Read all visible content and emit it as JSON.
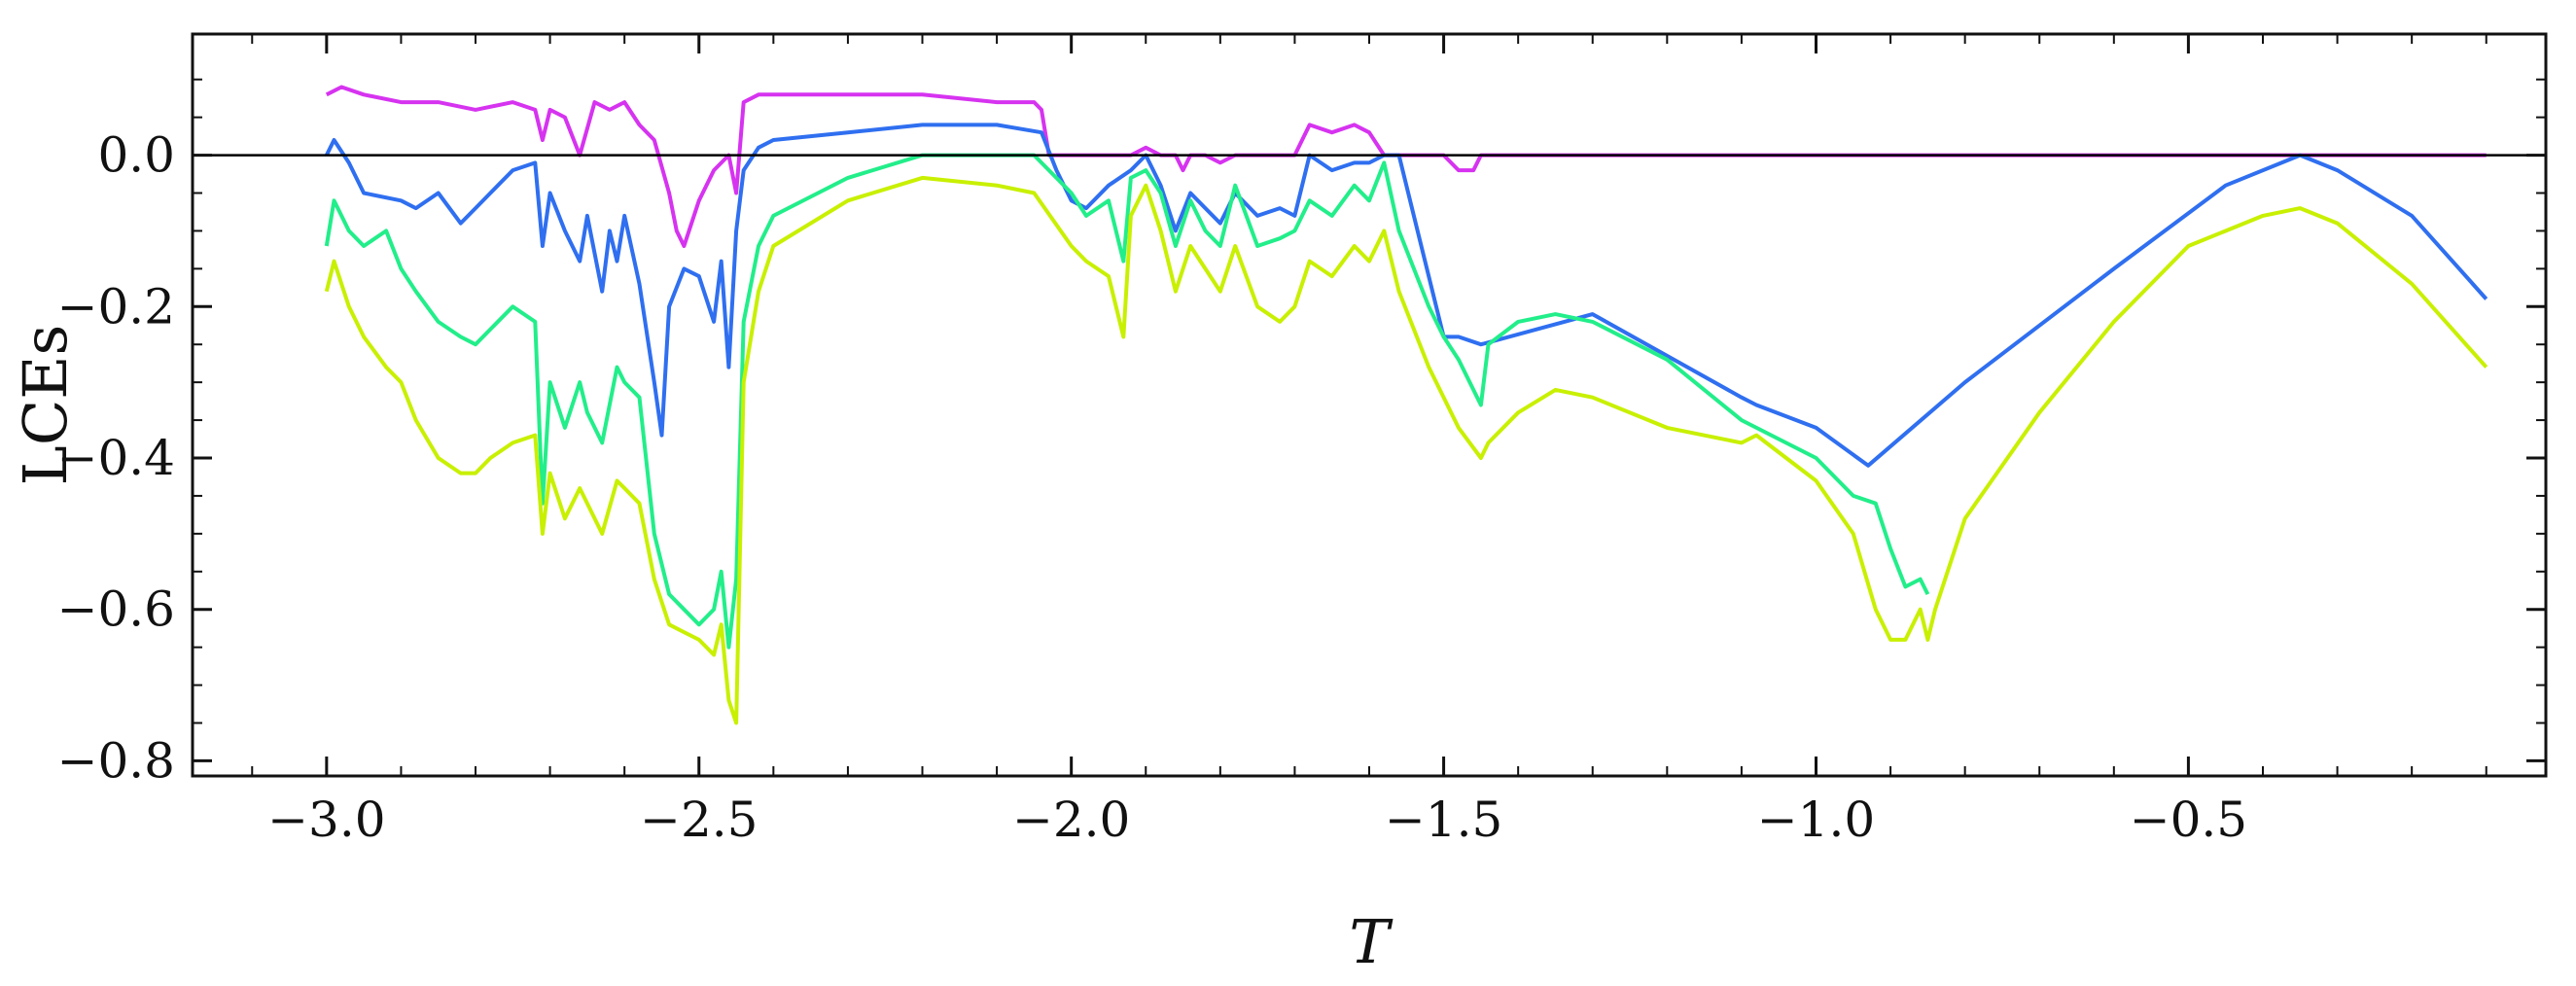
{
  "chart_data": {
    "type": "line",
    "xlabel": "T",
    "ylabel": "LCEs",
    "xlim": [
      -3.18,
      -0.02
    ],
    "ylim": [
      -0.82,
      0.16
    ],
    "xticks": [
      -3.0,
      -2.5,
      -2.0,
      -1.5,
      -1.0,
      -0.5
    ],
    "xtick_labels": [
      "−3.0",
      "−2.5",
      "−2.0",
      "−1.5",
      "−1.0",
      "−0.5"
    ],
    "yticks": [
      -0.8,
      -0.6,
      -0.4,
      -0.2,
      0.0
    ],
    "ytick_labels": [
      "−0.8",
      "−0.6",
      "−0.4",
      "−0.2",
      "0.0"
    ],
    "zero_line": 0.0,
    "grid": false,
    "legend": "none",
    "colors": {
      "magenta": "#d633f0",
      "blue": "#2f6ff0",
      "green": "#22ee8a",
      "yellow": "#c8f000",
      "zero_line": "#000000"
    },
    "series": [
      {
        "color": "magenta",
        "x": [
          -3.0,
          -2.98,
          -2.95,
          -2.9,
          -2.85,
          -2.8,
          -2.75,
          -2.72,
          -2.71,
          -2.7,
          -2.68,
          -2.66,
          -2.64,
          -2.62,
          -2.6,
          -2.58,
          -2.56,
          -2.54,
          -2.53,
          -2.52,
          -2.5,
          -2.48,
          -2.46,
          -2.45,
          -2.44,
          -2.42,
          -2.4,
          -2.3,
          -2.2,
          -2.1,
          -2.05,
          -2.04,
          -2.03,
          -2.0,
          -1.98,
          -1.95,
          -1.92,
          -1.9,
          -1.88,
          -1.86,
          -1.85,
          -1.84,
          -1.82,
          -1.8,
          -1.78,
          -1.75,
          -1.7,
          -1.68,
          -1.65,
          -1.62,
          -1.6,
          -1.58,
          -1.55,
          -1.5,
          -1.48,
          -1.46,
          -1.45,
          -1.44,
          -1.0,
          -0.5,
          -0.1
        ],
        "y": [
          0.08,
          0.09,
          0.08,
          0.07,
          0.07,
          0.06,
          0.07,
          0.06,
          0.02,
          0.06,
          0.05,
          0.0,
          0.07,
          0.06,
          0.07,
          0.04,
          0.02,
          -0.05,
          -0.1,
          -0.12,
          -0.06,
          -0.02,
          0.0,
          -0.05,
          0.07,
          0.08,
          0.08,
          0.08,
          0.08,
          0.07,
          0.07,
          0.06,
          0.0,
          0.0,
          0.0,
          0.0,
          0.0,
          0.01,
          0.0,
          0.0,
          -0.02,
          0.0,
          0.0,
          -0.01,
          0.0,
          0.0,
          0.0,
          0.04,
          0.03,
          0.04,
          0.03,
          0.0,
          0.0,
          0.0,
          -0.02,
          -0.02,
          0.0,
          0.0,
          0.0,
          0.0,
          0.0
        ]
      },
      {
        "color": "blue",
        "x": [
          -3.0,
          -2.99,
          -2.97,
          -2.95,
          -2.9,
          -2.88,
          -2.85,
          -2.82,
          -2.8,
          -2.78,
          -2.75,
          -2.72,
          -2.71,
          -2.7,
          -2.68,
          -2.66,
          -2.65,
          -2.63,
          -2.62,
          -2.61,
          -2.6,
          -2.58,
          -2.56,
          -2.55,
          -2.54,
          -2.52,
          -2.5,
          -2.48,
          -2.47,
          -2.46,
          -2.45,
          -2.44,
          -2.42,
          -2.4,
          -2.3,
          -2.2,
          -2.1,
          -2.04,
          -2.02,
          -2.0,
          -1.98,
          -1.95,
          -1.92,
          -1.9,
          -1.88,
          -1.86,
          -1.84,
          -1.82,
          -1.8,
          -1.78,
          -1.75,
          -1.72,
          -1.7,
          -1.68,
          -1.65,
          -1.62,
          -1.6,
          -1.58,
          -1.56,
          -1.54,
          -1.5,
          -1.48,
          -1.45,
          -1.3,
          -1.1,
          -1.08,
          -1.0,
          -0.93,
          -0.8,
          -0.6,
          -0.45,
          -0.35,
          -0.3,
          -0.2,
          -0.1
        ],
        "y": [
          0.0,
          0.02,
          -0.01,
          -0.05,
          -0.06,
          -0.07,
          -0.05,
          -0.09,
          -0.07,
          -0.05,
          -0.02,
          -0.01,
          -0.12,
          -0.05,
          -0.1,
          -0.14,
          -0.08,
          -0.18,
          -0.1,
          -0.14,
          -0.08,
          -0.17,
          -0.3,
          -0.37,
          -0.2,
          -0.15,
          -0.16,
          -0.22,
          -0.14,
          -0.28,
          -0.1,
          -0.02,
          0.01,
          0.02,
          0.03,
          0.04,
          0.04,
          0.03,
          -0.02,
          -0.06,
          -0.07,
          -0.04,
          -0.02,
          0.0,
          -0.04,
          -0.1,
          -0.05,
          -0.07,
          -0.09,
          -0.05,
          -0.08,
          -0.07,
          -0.08,
          0.0,
          -0.02,
          -0.01,
          -0.01,
          0.0,
          0.0,
          -0.08,
          -0.24,
          -0.24,
          -0.25,
          -0.21,
          -0.32,
          -0.33,
          -0.36,
          -0.41,
          -0.3,
          -0.15,
          -0.04,
          0.0,
          -0.02,
          -0.08,
          -0.19
        ]
      },
      {
        "color": "green",
        "x": [
          -3.0,
          -2.99,
          -2.97,
          -2.95,
          -2.92,
          -2.9,
          -2.88,
          -2.85,
          -2.82,
          -2.8,
          -2.78,
          -2.75,
          -2.72,
          -2.71,
          -2.7,
          -2.68,
          -2.66,
          -2.65,
          -2.63,
          -2.61,
          -2.6,
          -2.58,
          -2.56,
          -2.54,
          -2.52,
          -2.5,
          -2.48,
          -2.47,
          -2.46,
          -2.45,
          -2.44,
          -2.42,
          -2.4,
          -2.3,
          -2.2,
          -2.1,
          -2.05,
          -2.0,
          -1.98,
          -1.95,
          -1.93,
          -1.92,
          -1.9,
          -1.88,
          -1.86,
          -1.84,
          -1.82,
          -1.8,
          -1.78,
          -1.75,
          -1.72,
          -1.7,
          -1.68,
          -1.65,
          -1.62,
          -1.6,
          -1.58,
          -1.56,
          -1.52,
          -1.5,
          -1.48,
          -1.45,
          -1.44,
          -1.4,
          -1.35,
          -1.3,
          -1.2,
          -1.1,
          -1.08,
          -1.0,
          -0.95,
          -0.92,
          -0.9,
          -0.88,
          -0.86,
          -0.85
        ],
        "y": [
          -0.12,
          -0.06,
          -0.1,
          -0.12,
          -0.1,
          -0.15,
          -0.18,
          -0.22,
          -0.24,
          -0.25,
          -0.23,
          -0.2,
          -0.22,
          -0.46,
          -0.3,
          -0.36,
          -0.3,
          -0.34,
          -0.38,
          -0.28,
          -0.3,
          -0.32,
          -0.5,
          -0.58,
          -0.6,
          -0.62,
          -0.6,
          -0.55,
          -0.65,
          -0.56,
          -0.22,
          -0.12,
          -0.08,
          -0.03,
          0.0,
          0.0,
          0.0,
          -0.05,
          -0.08,
          -0.06,
          -0.14,
          -0.03,
          -0.02,
          -0.05,
          -0.12,
          -0.06,
          -0.1,
          -0.12,
          -0.04,
          -0.12,
          -0.11,
          -0.1,
          -0.06,
          -0.08,
          -0.04,
          -0.06,
          -0.01,
          -0.1,
          -0.2,
          -0.24,
          -0.27,
          -0.33,
          -0.25,
          -0.22,
          -0.21,
          -0.22,
          -0.27,
          -0.35,
          -0.36,
          -0.4,
          -0.45,
          -0.46,
          -0.52,
          -0.57,
          -0.56,
          -0.58
        ]
      },
      {
        "color": "yellow",
        "x": [
          -3.0,
          -2.99,
          -2.97,
          -2.95,
          -2.92,
          -2.9,
          -2.88,
          -2.85,
          -2.82,
          -2.8,
          -2.78,
          -2.75,
          -2.72,
          -2.71,
          -2.7,
          -2.68,
          -2.66,
          -2.65,
          -2.63,
          -2.61,
          -2.6,
          -2.58,
          -2.56,
          -2.54,
          -2.52,
          -2.5,
          -2.48,
          -2.47,
          -2.46,
          -2.45,
          -2.44,
          -2.42,
          -2.4,
          -2.3,
          -2.2,
          -2.1,
          -2.05,
          -2.0,
          -1.98,
          -1.95,
          -1.93,
          -1.92,
          -1.9,
          -1.88,
          -1.86,
          -1.84,
          -1.82,
          -1.8,
          -1.78,
          -1.75,
          -1.72,
          -1.7,
          -1.68,
          -1.65,
          -1.62,
          -1.6,
          -1.58,
          -1.56,
          -1.52,
          -1.5,
          -1.48,
          -1.45,
          -1.44,
          -1.4,
          -1.35,
          -1.3,
          -1.2,
          -1.1,
          -1.08,
          -1.0,
          -0.95,
          -0.92,
          -0.9,
          -0.88,
          -0.86,
          -0.85,
          -0.84,
          -0.8,
          -0.7,
          -0.6,
          -0.5,
          -0.4,
          -0.35,
          -0.3,
          -0.2,
          -0.1
        ],
        "y": [
          -0.18,
          -0.14,
          -0.2,
          -0.24,
          -0.28,
          -0.3,
          -0.35,
          -0.4,
          -0.42,
          -0.42,
          -0.4,
          -0.38,
          -0.37,
          -0.5,
          -0.42,
          -0.48,
          -0.44,
          -0.46,
          -0.5,
          -0.43,
          -0.44,
          -0.46,
          -0.56,
          -0.62,
          -0.63,
          -0.64,
          -0.66,
          -0.62,
          -0.72,
          -0.75,
          -0.3,
          -0.18,
          -0.12,
          -0.06,
          -0.03,
          -0.04,
          -0.05,
          -0.12,
          -0.14,
          -0.16,
          -0.24,
          -0.08,
          -0.04,
          -0.1,
          -0.18,
          -0.12,
          -0.15,
          -0.18,
          -0.12,
          -0.2,
          -0.22,
          -0.2,
          -0.14,
          -0.16,
          -0.12,
          -0.14,
          -0.1,
          -0.18,
          -0.28,
          -0.32,
          -0.36,
          -0.4,
          -0.38,
          -0.34,
          -0.31,
          -0.32,
          -0.36,
          -0.38,
          -0.37,
          -0.43,
          -0.5,
          -0.6,
          -0.64,
          -0.64,
          -0.6,
          -0.64,
          -0.6,
          -0.48,
          -0.34,
          -0.22,
          -0.12,
          -0.08,
          -0.07,
          -0.09,
          -0.17,
          -0.28
        ]
      }
    ]
  }
}
